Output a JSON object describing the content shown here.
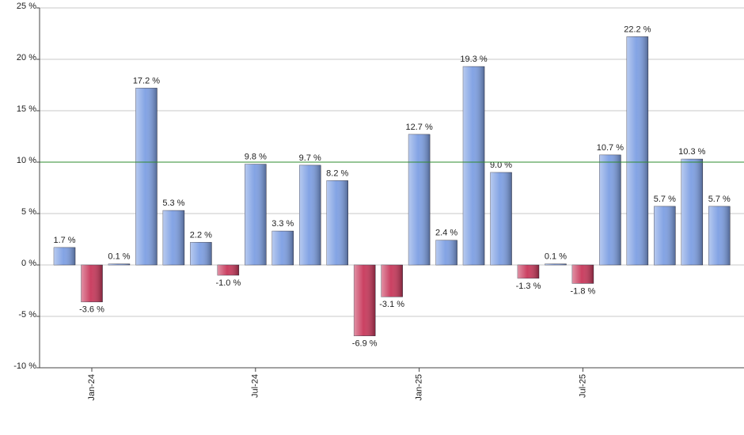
{
  "chart_data": {
    "type": "bar",
    "categories": [
      null,
      "Jan-24",
      null,
      null,
      null,
      null,
      null,
      "Jul-24",
      null,
      null,
      null,
      null,
      null,
      "Jan-25",
      null,
      null,
      null,
      null,
      null,
      "Jul-25",
      null,
      null,
      null,
      null,
      null
    ],
    "values": [
      1.7,
      -3.6,
      0.1,
      17.2,
      5.3,
      2.2,
      -1.0,
      9.8,
      3.3,
      9.7,
      8.2,
      -6.9,
      -3.1,
      12.7,
      2.4,
      19.3,
      9.0,
      -1.3,
      0.1,
      -1.8,
      10.7,
      22.2,
      5.7,
      10.3,
      5.7
    ],
    "value_labels": [
      "1.7 %",
      "-3.6 %",
      "0.1 %",
      "17.2 %",
      "5.3 %",
      "2.2 %",
      "-1.0 %",
      "9.8 %",
      "3.3 %",
      "9.7 %",
      "8.2 %",
      "-6.9 %",
      "-3.1 %",
      "12.7 %",
      "2.4 %",
      "19.3 %",
      "9.0 %",
      "-1.3 %",
      "0.1 %",
      "-1.8 %",
      "10.7 %",
      "22.2 %",
      "5.7 %",
      "10.3 %",
      "5.7 %"
    ],
    "positive_color": "#7d9fe3",
    "negative_color": "#c8375a",
    "ylim": [
      -10,
      25
    ],
    "yticks": [
      {
        "value": -10,
        "label": "-10 %"
      },
      {
        "value": -5,
        "label": "-5 %"
      },
      {
        "value": 0,
        "label": "0 %"
      },
      {
        "value": 5,
        "label": "5 %"
      },
      {
        "value": 10,
        "label": "10 %"
      },
      {
        "value": 15,
        "label": "15 %"
      },
      {
        "value": 20,
        "label": "20 %"
      },
      {
        "value": 25,
        "label": "25 %"
      }
    ],
    "reference_line": 10,
    "reference_color": "#2e8b2e",
    "grid": true
  }
}
